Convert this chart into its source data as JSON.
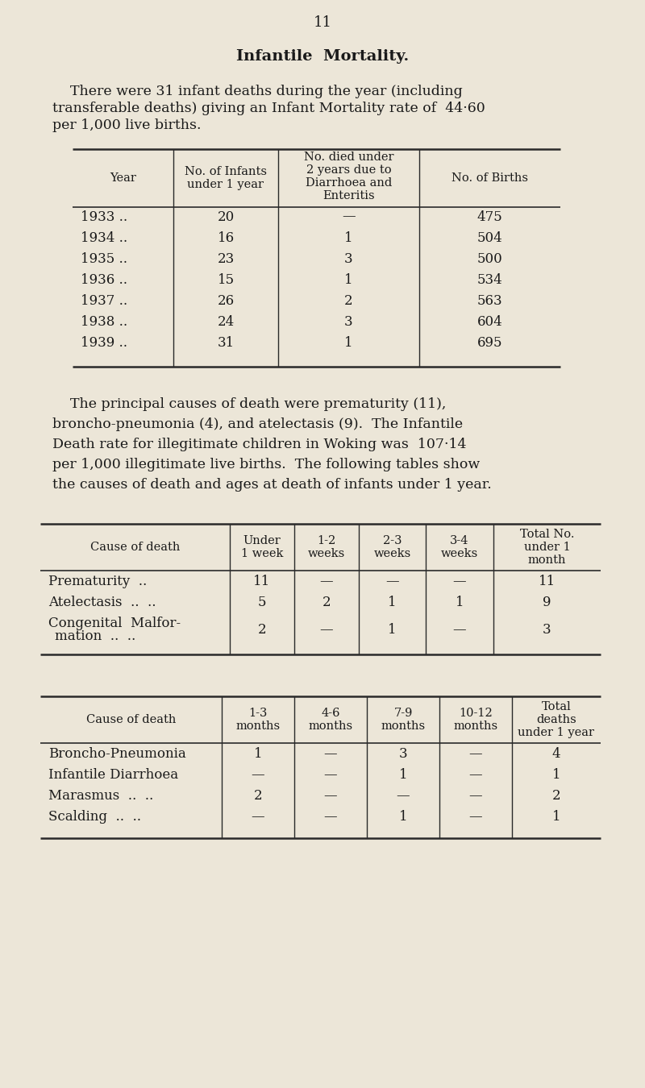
{
  "bg_color": "#ece6d8",
  "text_color": "#1a1a1a",
  "page_number": "11",
  "title": "Infantile  Mortality.",
  "intro_line1": "    There were 31 infant deaths during the year (including",
  "intro_line2": "transferable deaths) giving an Infant Mortality rate of  44·60",
  "intro_line3": "per 1,000 live births.",
  "table1_col_bounds": [
    90,
    215,
    345,
    520,
    695
  ],
  "table1_headers": [
    "Year",
    "No. of Infants\nunder 1 year",
    "No. died under\n2 years due to\nDiarrhoea and\nEnteritis",
    "No. of Births"
  ],
  "table1_rows": [
    [
      "1933 ..",
      "20",
      "—",
      "475"
    ],
    [
      "1934 ..",
      "16",
      "1",
      "504"
    ],
    [
      "1935 ..",
      "23",
      "3",
      "500"
    ],
    [
      "1936 ..",
      "15",
      "1",
      "534"
    ],
    [
      "1937 ..",
      "26",
      "2",
      "563"
    ],
    [
      "1938 ..",
      "24",
      "3",
      "604"
    ],
    [
      "1939 ..",
      "31",
      "1",
      "695"
    ]
  ],
  "middle_line1": "    The principal causes of death were prematurity (11),",
  "middle_line2": "broncho-pneumonia (4), and atelectasis (9).  The Infantile",
  "middle_line3": "Death rate for illegitimate children in Woking was  107·14",
  "middle_line4": "per 1,000 illegitimate live births.  The following tables show",
  "middle_line5": "the causes of death and ages at death of infants under 1 year.",
  "table2_col_bounds": [
    50,
    285,
    365,
    445,
    528,
    612,
    745
  ],
  "table2_headers": [
    "Cause of death",
    "Under\n1 week",
    "1-2\nweeks",
    "2-3\nweeks",
    "3-4\nweeks",
    "Total No.\nunder 1\nmonth"
  ],
  "table2_row1_label": "Prematurity  ..",
  "table2_row2_label1": "Atelectasis  ..  ..",
  "table2_row2_label2": "",
  "table2_row3_label1": "Congenital  Malfor-",
  "table2_row3_label2": "   mation  ..  ..",
  "table2_rows": [
    [
      "Prematurity  ..",
      "11",
      "—",
      "—",
      "—",
      "11"
    ],
    [
      "Atelectasis  ..  ..",
      "5",
      "2",
      "1",
      "1",
      "9"
    ],
    [
      "Congenital  Malfor-\n   mation  ..  ..",
      "2",
      "—",
      "1",
      "—",
      "3"
    ]
  ],
  "table3_col_bounds": [
    50,
    275,
    365,
    455,
    545,
    635,
    745
  ],
  "table3_headers": [
    "Cause of death",
    "1-3\nmonths",
    "4-6\nmonths",
    "7-9\nmonths",
    "10-12\nmonths",
    "Total\ndeaths\nunder 1 year"
  ],
  "table3_rows": [
    [
      "Broncho-Pneumonia",
      "1",
      "—",
      "3",
      "—",
      "4"
    ],
    [
      "Infantile Diarrhoea",
      "—",
      "—",
      "1",
      "—",
      "1"
    ],
    [
      "Marasmus  ..  ..",
      "2",
      "—",
      "—",
      "—",
      "2"
    ],
    [
      "Scalding  ..  ..",
      "—",
      "—",
      "1",
      "—",
      "1"
    ]
  ]
}
